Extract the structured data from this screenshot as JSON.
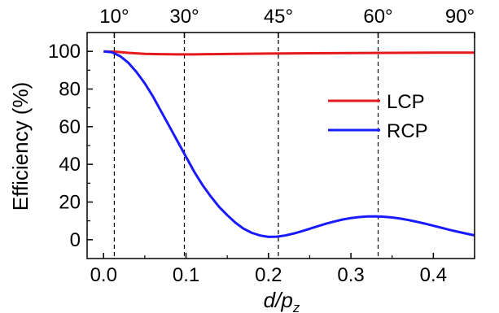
{
  "chart_data": {
    "type": "line",
    "ylabel": "Efficiency (%)",
    "xlabel": {
      "main": "d/p",
      "sub": "z"
    },
    "xlim": [
      -0.02,
      0.45
    ],
    "ylim": [
      -10,
      110
    ],
    "x_ticks": [
      0.0,
      0.1,
      0.2,
      0.3,
      0.4
    ],
    "x_tick_labels": [
      "0.0",
      "0.1",
      "0.2",
      "0.3",
      "0.4"
    ],
    "y_ticks": [
      0,
      20,
      40,
      60,
      80,
      100
    ],
    "y_tick_labels": [
      "0",
      "20",
      "40",
      "60",
      "80",
      "100"
    ],
    "top_axis": {
      "ticks": [
        0.013,
        0.098,
        0.212,
        0.333,
        0.45
      ],
      "labels": [
        "10°",
        "30°",
        "45°",
        "60°",
        "90°"
      ]
    },
    "reference_lines_x": [
      0.013,
      0.098,
      0.212,
      0.333
    ],
    "grid": false,
    "legend": {
      "placement": "right-center"
    },
    "series": [
      {
        "name": "LCP",
        "color": "#e41a1c",
        "x": [
          0.0,
          0.015,
          0.03,
          0.05,
          0.07,
          0.09,
          0.11,
          0.13,
          0.15,
          0.2,
          0.25,
          0.3,
          0.35,
          0.4,
          0.45
        ],
        "y": [
          100,
          99.8,
          99.2,
          98.7,
          98.5,
          98.4,
          98.4,
          98.5,
          98.6,
          98.8,
          99.0,
          99.1,
          99.2,
          99.3,
          99.3
        ]
      },
      {
        "name": "RCP",
        "color": "#1a1aff",
        "x": [
          0.0,
          0.01,
          0.02,
          0.03,
          0.04,
          0.05,
          0.06,
          0.07,
          0.08,
          0.09,
          0.1,
          0.11,
          0.12,
          0.13,
          0.14,
          0.15,
          0.16,
          0.17,
          0.18,
          0.19,
          0.2,
          0.21,
          0.22,
          0.23,
          0.24,
          0.25,
          0.26,
          0.27,
          0.28,
          0.29,
          0.3,
          0.31,
          0.32,
          0.33,
          0.34,
          0.35,
          0.36,
          0.37,
          0.38,
          0.39,
          0.4,
          0.41,
          0.42,
          0.43,
          0.44,
          0.45
        ],
        "y": [
          100,
          99.5,
          97.5,
          94,
          89,
          83,
          76,
          68,
          60,
          52,
          44,
          36,
          29,
          23,
          17.5,
          13,
          9,
          5.8,
          3.6,
          2.2,
          1.5,
          1.6,
          2.2,
          3.2,
          4.4,
          5.8,
          7.2,
          8.5,
          9.7,
          10.7,
          11.5,
          12.0,
          12.3,
          12.4,
          12.2,
          11.8,
          11.2,
          10.4,
          9.5,
          8.5,
          7.4,
          6.3,
          5.2,
          4.2,
          3.2,
          2.3
        ]
      }
    ]
  }
}
